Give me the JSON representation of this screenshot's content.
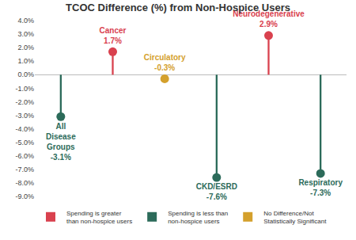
{
  "chart_data": {
    "type": "lollipop",
    "title": "TCOC Difference (%) from Non-Hospice Users",
    "categories": [
      "All Disease Groups",
      "Cancer",
      "Circulatory",
      "CKD/ESRD",
      "Neurodegenerative",
      "Respiratory"
    ],
    "series": [
      {
        "name": "Spending is greater than non-hospice users",
        "color": "#d9414e",
        "values": [
          null,
          1.7,
          null,
          null,
          2.9,
          null
        ],
        "value_labels": [
          null,
          "1.7%",
          null,
          null,
          "2.9%",
          null
        ]
      },
      {
        "name": "Spending is less than non-hospice users",
        "color": "#2c6b5a",
        "values": [
          -3.1,
          null,
          null,
          -7.6,
          null,
          -7.3
        ],
        "value_labels": [
          "-3.1%",
          null,
          null,
          "-7.6%",
          null,
          "-7.3%"
        ]
      },
      {
        "name": "No Difference/Not Statistically Significant",
        "color": "#d4a02c",
        "values": [
          null,
          null,
          -0.3,
          null,
          null,
          null
        ],
        "value_labels": [
          null,
          null,
          "-0.3%",
          null,
          null,
          null
        ]
      }
    ],
    "ylim": [
      -9,
      4
    ],
    "yticks": [
      {
        "value": 4,
        "label": "4.0%"
      },
      {
        "value": 3,
        "label": "3.0%"
      },
      {
        "value": 2,
        "label": "2.0%"
      },
      {
        "value": 1,
        "label": "1.0%"
      },
      {
        "value": 0,
        "label": "0.0%"
      },
      {
        "value": -1,
        "label": "-1.0%"
      },
      {
        "value": -2,
        "label": "-2.0%"
      },
      {
        "value": -3,
        "label": "-3.0%"
      },
      {
        "value": -4,
        "label": "-4.0%"
      },
      {
        "value": -5,
        "label": "-5.0%"
      },
      {
        "value": -6,
        "label": "-6.0%"
      },
      {
        "value": -7,
        "label": "-7.0%"
      },
      {
        "value": -8,
        "label": "-8.0%"
      },
      {
        "value": -9,
        "label": "-9.0%"
      }
    ],
    "grid": false,
    "legend": "bottom",
    "data_labels": true,
    "tick_labels": "y"
  }
}
